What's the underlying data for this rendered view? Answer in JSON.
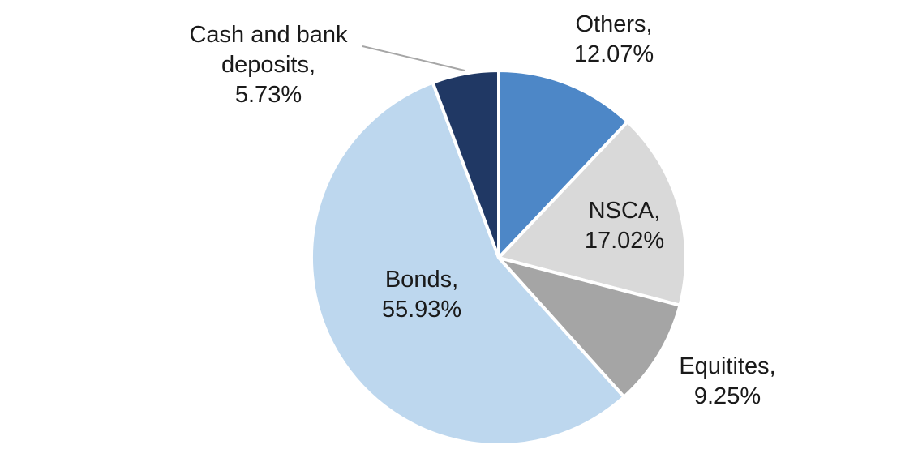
{
  "chart_data": {
    "type": "pie",
    "title": "",
    "legend": "none",
    "start_angle_deg": 0,
    "direction": "clockwise",
    "label_format": "name, percent",
    "background_color": "#ffffff",
    "slices": [
      {
        "name": "Others",
        "value": 12.07,
        "color": "#4d87c7",
        "label": "Others,",
        "value_label": "12.07%"
      },
      {
        "name": "NSCA",
        "value": 17.02,
        "color": "#d9d9d9",
        "label": "NSCA,",
        "value_label": "17.02%"
      },
      {
        "name": "Equitites",
        "value": 9.25,
        "color": "#a5a5a5",
        "label": "Equitites,",
        "value_label": "9.25%"
      },
      {
        "name": "Bonds",
        "value": 55.93,
        "color": "#bdd7ee",
        "label": "Bonds,",
        "value_label": "55.93%"
      },
      {
        "name": "Cash and bank deposits",
        "value": 5.73,
        "color": "#203864",
        "label": "Cash and bank deposits,",
        "value_label": "5.73%"
      }
    ]
  }
}
